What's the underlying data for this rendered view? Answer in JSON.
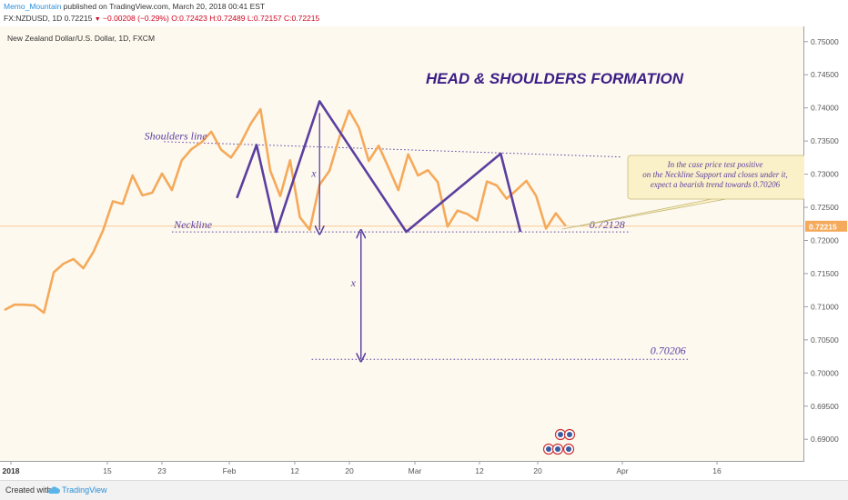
{
  "header": {
    "author": "Memo_Mountain",
    "published_text": " published on TradingView.com, March 20, 2018 00:41 EST",
    "symbol": "FX:NZDUSD, 1D",
    "last": "0.72215",
    "change": "−0.00208 (−0.29%)",
    "ohlc": "O:0.72423 H:0.72489 L:0.72157 C:0.72215"
  },
  "footer": {
    "created_with": "Created with",
    "brand": "TradingView"
  },
  "chart_data": {
    "type": "line",
    "symbol_title": "New Zealand Dollar/U.S. Dollar, 1D, FXCM",
    "annotation_title": "HEAD & SHOULDERS FORMATION",
    "ylim": [
      0.6866,
      0.7523
    ],
    "y_ticks": [
      "0.75000",
      "0.74500",
      "0.74000",
      "0.73500",
      "0.73000",
      "0.72500",
      "0.72000",
      "0.71500",
      "0.71000",
      "0.70500",
      "0.70000",
      "0.69500",
      "0.69000"
    ],
    "x_ticks": [
      "2018",
      "15",
      "23",
      "Feb",
      "12",
      "20",
      "Mar",
      "12",
      "20",
      "Apr",
      "16"
    ],
    "current_price_label": "0.72215",
    "current_price": 0.72215,
    "line_color": "#f5a95a",
    "pattern_color": "#5b3fa0",
    "series": [
      {
        "values": [
          0.7095,
          0.7103,
          0.7103,
          0.7102,
          0.7091,
          0.7152,
          0.7165,
          0.7172,
          0.7158,
          0.7182,
          0.7215,
          0.7259,
          0.7255,
          0.7298,
          0.7268,
          0.7272,
          0.7301,
          0.7276,
          0.7321,
          0.7338,
          0.7348,
          0.7364,
          0.7337,
          0.7325,
          0.7347,
          0.7376,
          0.7398,
          0.7305,
          0.7267,
          0.7321,
          0.7235,
          0.7216,
          0.7284,
          0.7305,
          0.7355,
          0.7396,
          0.737,
          0.732,
          0.7343,
          0.731,
          0.7276,
          0.733,
          0.7298,
          0.7306,
          0.7288,
          0.7221,
          0.7245,
          0.724,
          0.723,
          0.7289,
          0.7283,
          0.7263,
          0.7276,
          0.729,
          0.7267,
          0.7218,
          0.7241,
          0.7222
        ]
      }
    ],
    "pattern_points": [
      0.7264,
      0.7344,
      0.7213,
      0.741,
      0.7213,
      0.7331,
      0.7213
    ],
    "pattern_labels": {
      "shoulders_line": "Shoulders line",
      "neckline": "Neckline",
      "neckline_value": "0.72128",
      "target_value": "0.70206",
      "x_label": "x",
      "note_lines": [
        "In the case price test positive",
        "on the Neckline Support and closes under it,",
        "expect a bearish trend towards 0.70206"
      ]
    },
    "neckline": 0.72128,
    "target": 0.70206,
    "grid": false
  }
}
